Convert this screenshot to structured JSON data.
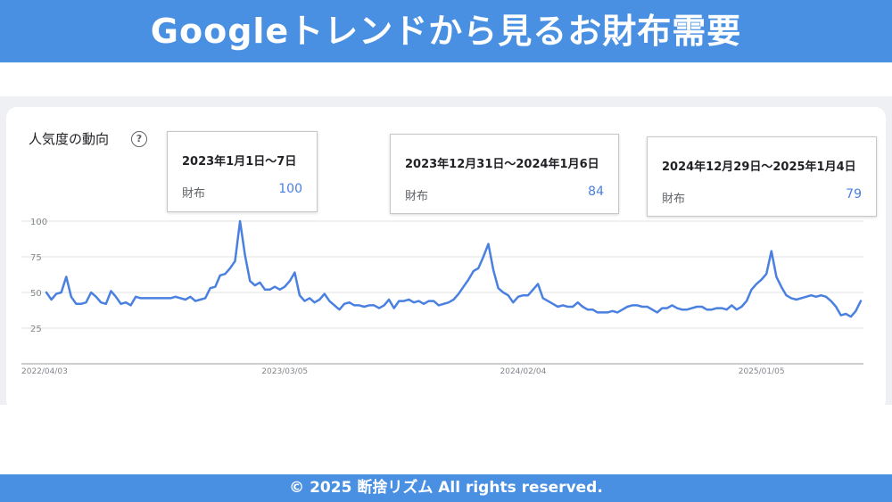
{
  "header": {
    "title": "Googleトレンドから見るお財布需要"
  },
  "card": {
    "title": "人気度の動向",
    "help_icon": "?"
  },
  "tooltips": [
    {
      "date": "2023年1月1日～7日",
      "term": "財布",
      "value": "100"
    },
    {
      "date": "2023年12月31日～2024年1月6日",
      "term": "財布",
      "value": "84"
    },
    {
      "date": "2024年12月29日～2025年1月4日",
      "term": "財布",
      "value": "79"
    }
  ],
  "footer": {
    "text": "© 2025 断捨リズム All rights reserved."
  },
  "colors": {
    "brand": "#4a90e2",
    "line": "#4a80e0",
    "grid": "#e0e0e0",
    "axis": "#9e9e9e"
  },
  "chart_data": {
    "type": "line",
    "title": "",
    "xlabel": "",
    "ylabel": "",
    "ylim": [
      0,
      100
    ],
    "yticks": [
      25,
      50,
      75,
      100
    ],
    "x_tick_labels": [
      "2022/04/03",
      "2023/03/05",
      "2024/02/04",
      "2025/01/05"
    ],
    "x_start": "2022-04-03",
    "x_end": "2025-03-30",
    "grid": true,
    "series": [
      {
        "name": "財布",
        "values": [
          50,
          45,
          49,
          50,
          61,
          47,
          42,
          42,
          43,
          50,
          47,
          43,
          42,
          51,
          47,
          42,
          43,
          41,
          47,
          46,
          46,
          46,
          46,
          46,
          46,
          46,
          47,
          46,
          45,
          47,
          44,
          45,
          46,
          53,
          54,
          62,
          63,
          67,
          72,
          100,
          76,
          58,
          55,
          57,
          52,
          52,
          54,
          52,
          54,
          58,
          64,
          48,
          44,
          46,
          43,
          45,
          49,
          44,
          41,
          38,
          42,
          43,
          41,
          41,
          40,
          41,
          41,
          39,
          41,
          45,
          39,
          44,
          44,
          45,
          43,
          44,
          42,
          44,
          44,
          41,
          42,
          43,
          45,
          49,
          54,
          59,
          65,
          67,
          75,
          84,
          66,
          53,
          50,
          48,
          43,
          47,
          48,
          48,
          52,
          56,
          46,
          44,
          42,
          40,
          41,
          40,
          40,
          43,
          40,
          38,
          38,
          36,
          36,
          36,
          37,
          36,
          38,
          40,
          41,
          41,
          40,
          40,
          38,
          36,
          39,
          39,
          41,
          39,
          38,
          38,
          39,
          40,
          40,
          38,
          38,
          39,
          39,
          38,
          41,
          38,
          40,
          44,
          52,
          56,
          59,
          63,
          79,
          61,
          54,
          48,
          46,
          45,
          46,
          47,
          48,
          47,
          48,
          47,
          44,
          40,
          34,
          35,
          33,
          37,
          44
        ]
      }
    ]
  }
}
